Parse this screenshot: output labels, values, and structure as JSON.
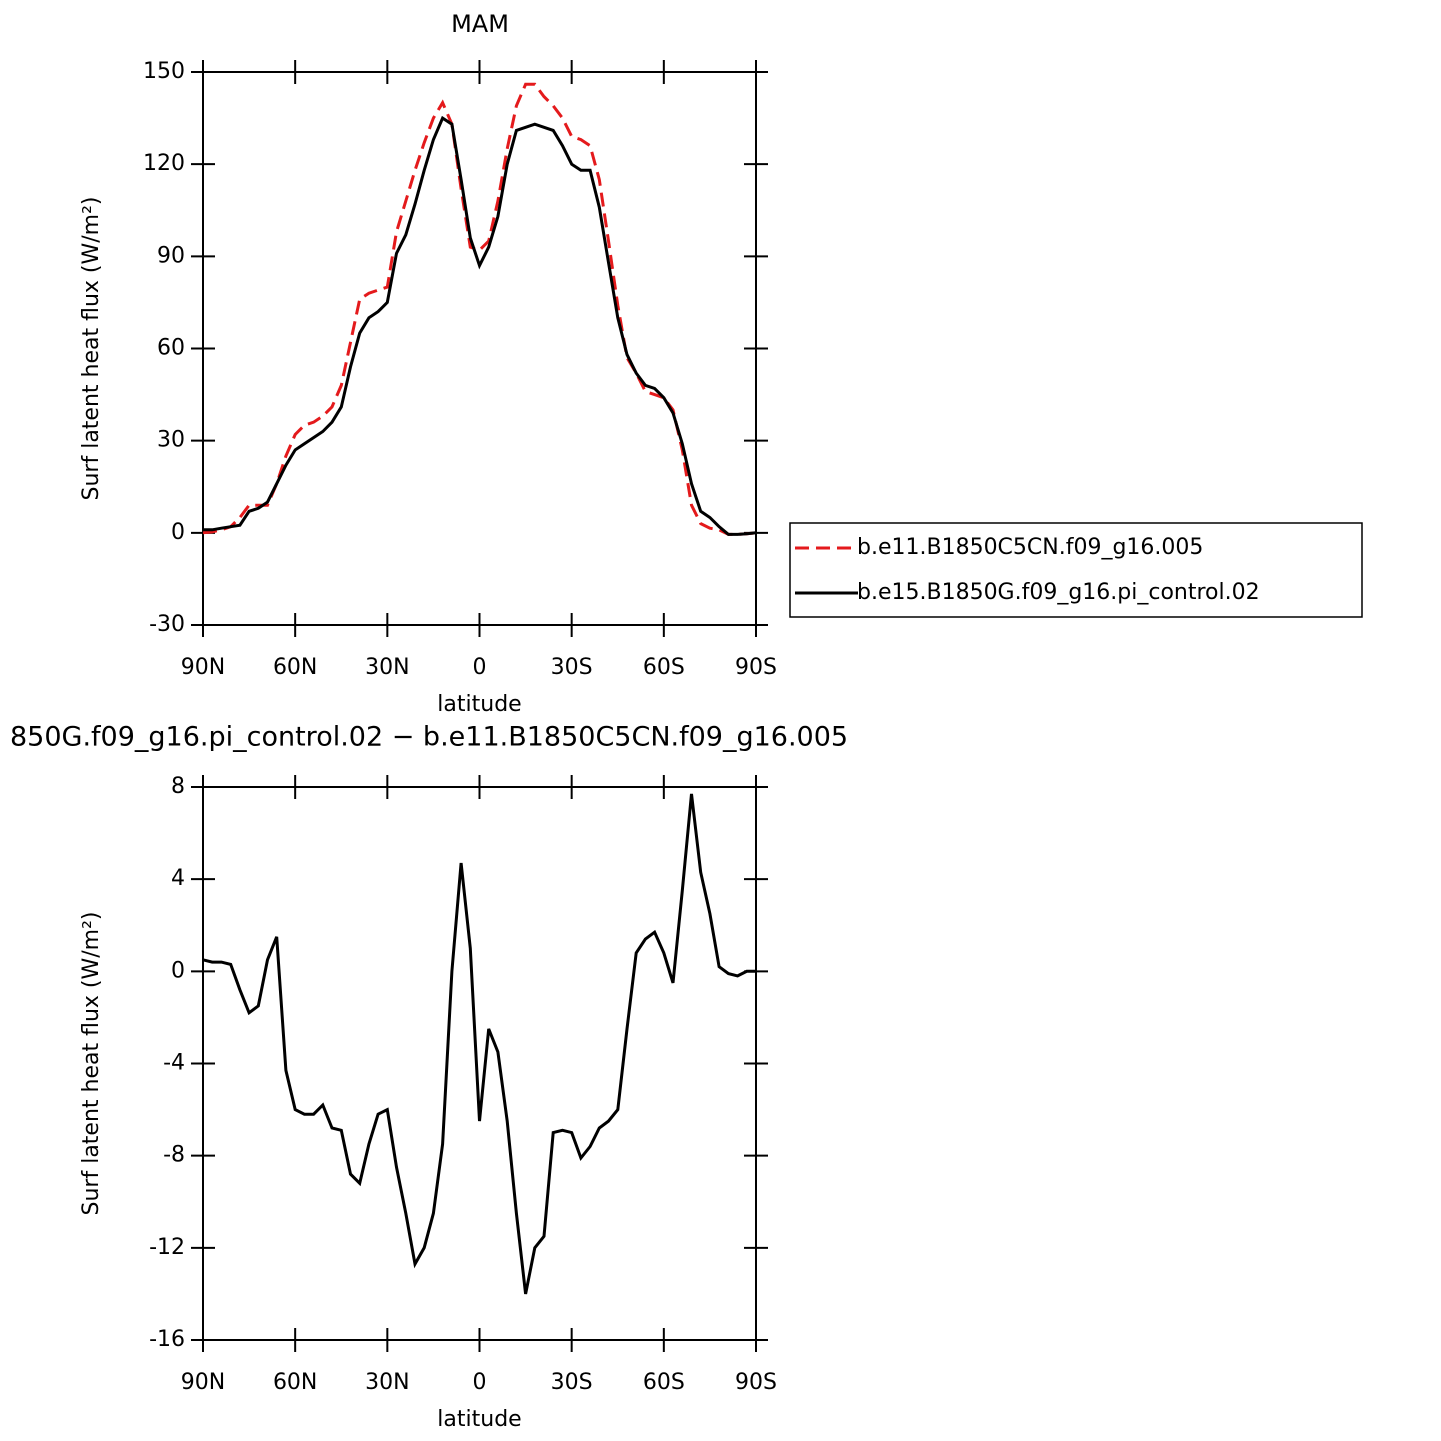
{
  "chart_data": [
    {
      "type": "line",
      "title": "MAM",
      "x_label": "latitude",
      "y_label": "Surf latent heat flux (W/m²)",
      "x": [
        90,
        87,
        84,
        81,
        78,
        75,
        72,
        69,
        66,
        63,
        60,
        57,
        54,
        51,
        48,
        45,
        42,
        39,
        36,
        33,
        30,
        27,
        24,
        21,
        18,
        15,
        12,
        9,
        6,
        3,
        0,
        -3,
        -6,
        -9,
        -12,
        -15,
        -18,
        -21,
        -24,
        -27,
        -30,
        -33,
        -36,
        -39,
        -42,
        -45,
        -48,
        -51,
        -54,
        -57,
        -60,
        -63,
        -66,
        -69,
        -72,
        -75,
        -78,
        -81,
        -84,
        -87,
        -90
      ],
      "series": [
        {
          "name": "b.e11.B1850C5CN.f09_g16.005",
          "color": "#e41a1c",
          "dash": "dashed",
          "values": [
            0,
            0.3,
            1,
            2,
            5,
            9,
            9,
            9,
            16,
            25,
            32,
            35,
            36,
            38,
            41,
            48,
            62,
            76,
            78,
            79,
            80,
            98,
            108,
            118,
            127,
            135,
            140,
            133,
            112,
            93,
            92,
            95,
            108,
            125,
            139,
            146,
            146,
            142,
            139,
            135,
            129,
            128,
            126,
            115,
            95,
            74,
            57,
            52,
            46,
            45,
            44,
            40,
            27,
            9,
            3,
            1.5,
            1,
            -0.5,
            -0.5,
            -0.3,
            0
          ]
        },
        {
          "name": "b.e15.B1850G.f09_g16.pi_control.02",
          "color": "#000000",
          "dash": "solid",
          "values": [
            1,
            1,
            1.5,
            2,
            2.5,
            7,
            8,
            10,
            16,
            22,
            27,
            29,
            31,
            33,
            36,
            41,
            54,
            65,
            70,
            72,
            75,
            91,
            97,
            107,
            118,
            128,
            135,
            133,
            115,
            96,
            87,
            93,
            103,
            120,
            131,
            132,
            133,
            132,
            131,
            126,
            120,
            118,
            118,
            106,
            88,
            70,
            58,
            52,
            48,
            47,
            44,
            39,
            29,
            16,
            7,
            5,
            2,
            -0.5,
            -0.5,
            -0.3,
            0
          ]
        }
      ],
      "xlim": [
        90,
        -90
      ],
      "xticks": [
        {
          "value": 90,
          "label": "90N"
        },
        {
          "value": 60,
          "label": "60N"
        },
        {
          "value": 30,
          "label": "30N"
        },
        0,
        {
          "value": -30,
          "label": "30S"
        },
        {
          "value": -60,
          "label": "60S"
        },
        {
          "value": -90,
          "label": "90S"
        }
      ],
      "ylim": [
        -30,
        150
      ],
      "yticks": [
        -30,
        0,
        30,
        60,
        90,
        120,
        150
      ],
      "legend": "right"
    },
    {
      "type": "line",
      "title": "850G.f09_g16.pi_control.02 − b.e11.B1850C5CN.f09_g16.005",
      "x_label": "latitude",
      "y_label": "Surf latent heat flux (W/m²)",
      "x": [
        90,
        87,
        84,
        81,
        78,
        75,
        72,
        69,
        66,
        63,
        60,
        57,
        54,
        51,
        48,
        45,
        42,
        39,
        36,
        33,
        30,
        27,
        24,
        21,
        18,
        15,
        12,
        9,
        6,
        3,
        0,
        -3,
        -6,
        -9,
        -12,
        -15,
        -18,
        -21,
        -24,
        -27,
        -30,
        -33,
        -36,
        -39,
        -42,
        -45,
        -48,
        -51,
        -54,
        -57,
        -60,
        -63,
        -66,
        -69,
        -72,
        -75,
        -78,
        -81,
        -84,
        -87,
        -90
      ],
      "color": "#000000",
      "values": [
        0.5,
        0.4,
        0.4,
        0.3,
        -0.8,
        -1.8,
        -1.5,
        0.5,
        1.5,
        -4.3,
        -6,
        -6.2,
        -6.2,
        -5.8,
        -6.8,
        -6.9,
        -8.8,
        -9.2,
        -7.5,
        -6.2,
        -6,
        -8.5,
        -10.5,
        -12.7,
        -12,
        -10.5,
        -7.5,
        0,
        4.7,
        1,
        -6.5,
        -2.5,
        -3.5,
        -6.5,
        -10.5,
        -14,
        -12,
        -11.5,
        -7,
        -6.9,
        -7,
        -8.1,
        -7.6,
        -6.8,
        -6.5,
        -6,
        -2.5,
        0.8,
        1.4,
        1.7,
        0.8,
        -0.5,
        3.5,
        7.7,
        4.3,
        2.5,
        0.2,
        -0.1,
        -0.2,
        0,
        0
      ],
      "xlim": [
        90,
        -90
      ],
      "xticks": [
        {
          "value": 90,
          "label": "90N"
        },
        {
          "value": 60,
          "label": "60N"
        },
        {
          "value": 30,
          "label": "30N"
        },
        0,
        {
          "value": -30,
          "label": "30S"
        },
        {
          "value": -60,
          "label": "60S"
        },
        {
          "value": -90,
          "label": "90S"
        }
      ],
      "ylim": [
        -16,
        8
      ],
      "yticks": [
        -16,
        -12,
        -8,
        -4,
        0,
        4,
        8
      ]
    }
  ]
}
